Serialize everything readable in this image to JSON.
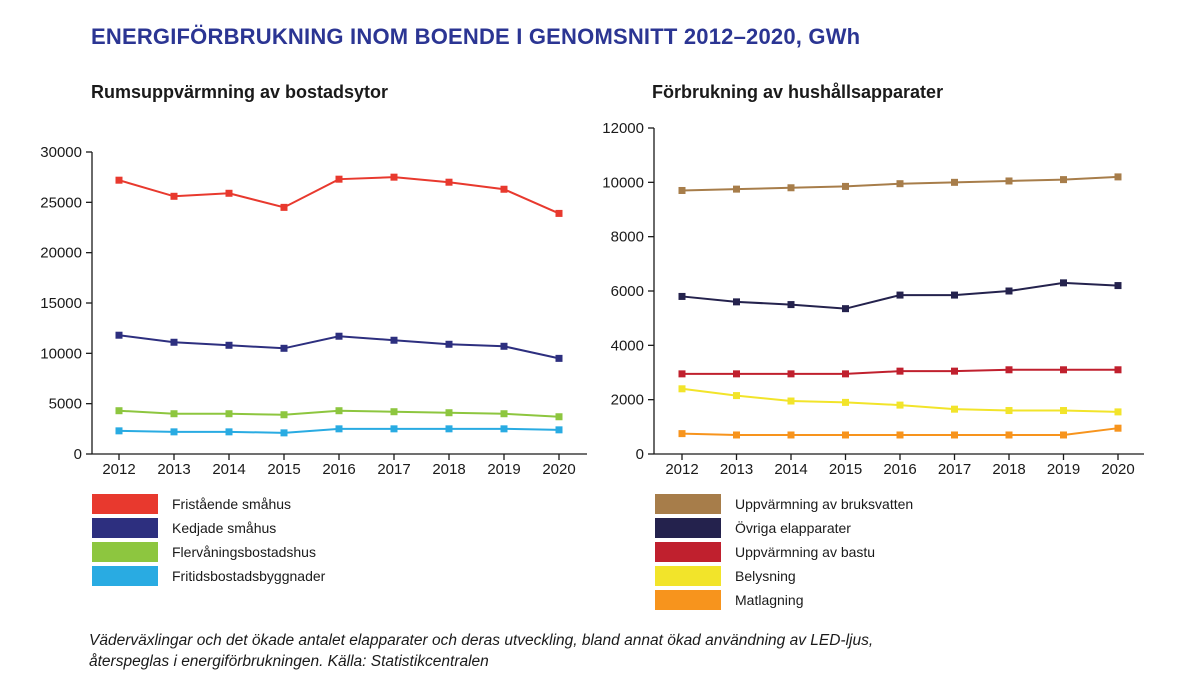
{
  "title": "ENERGIFÖRBRUKNING INOM BOENDE I GENOMSNITT 2012–2020, GWh",
  "footnote": {
    "line1": "Väderväxlingar och det ökade antalet elapparater och deras utveckling, bland annat ökad användning av LED-ljus,",
    "line2": "återspeglas i energiförbrukningen. Källa: Statistikcentralen"
  },
  "chart_data": [
    {
      "type": "line",
      "title": "Rumsuppvärmning av bostadsytor",
      "categories": [
        "2012",
        "2013",
        "2014",
        "2015",
        "2016",
        "2017",
        "2018",
        "2019",
        "2020"
      ],
      "ylim": [
        0,
        30000
      ],
      "yticks": [
        "0",
        "5000",
        "10000",
        "15000",
        "20000",
        "25000",
        "30000"
      ],
      "grid": false,
      "legend_position": "bottom",
      "series": [
        {
          "name": "Fristående småhus",
          "color": "#e8392e",
          "values": [
            27200,
            25600,
            25900,
            24500,
            27300,
            27500,
            27000,
            26300,
            23900
          ]
        },
        {
          "name": "Kedjade småhus",
          "color": "#2d2f7f",
          "values": [
            11800,
            11100,
            10800,
            10500,
            11700,
            11300,
            10900,
            10700,
            9500
          ]
        },
        {
          "name": "Flervåningsbostadshus",
          "color": "#8dc63f",
          "values": [
            4300,
            4000,
            4000,
            3900,
            4300,
            4200,
            4100,
            4000,
            3700
          ]
        },
        {
          "name": "Fritidsbostadsbyggnader",
          "color": "#29abe2",
          "values": [
            2300,
            2200,
            2200,
            2100,
            2500,
            2500,
            2500,
            2500,
            2400
          ]
        }
      ]
    },
    {
      "type": "line",
      "title": "Förbrukning av hushållsapparater",
      "categories": [
        "2012",
        "2013",
        "2014",
        "2015",
        "2016",
        "2017",
        "2018",
        "2019",
        "2020"
      ],
      "ylim": [
        0,
        12000
      ],
      "yticks": [
        "0",
        "2000",
        "4000",
        "6000",
        "8000",
        "10000",
        "12000"
      ],
      "grid": false,
      "legend_position": "bottom",
      "series": [
        {
          "name": "Uppvärmning av bruksvatten",
          "color": "#a77d4a",
          "values": [
            9700,
            9750,
            9800,
            9850,
            9950,
            10000,
            10050,
            10100,
            10200
          ]
        },
        {
          "name": "Övriga elapparater",
          "color": "#24224d",
          "values": [
            5800,
            5600,
            5500,
            5350,
            5850,
            5850,
            6000,
            6300,
            6200
          ]
        },
        {
          "name": "Uppvärmning av bastu",
          "color": "#c0202e",
          "values": [
            2950,
            2950,
            2950,
            2950,
            3050,
            3050,
            3100,
            3100,
            3100
          ]
        },
        {
          "name": "Belysning",
          "color": "#f2e42a",
          "values": [
            2400,
            2150,
            1950,
            1900,
            1800,
            1650,
            1600,
            1600,
            1550
          ]
        },
        {
          "name": "Matlagning",
          "color": "#f7941d",
          "values": [
            750,
            700,
            700,
            700,
            700,
            700,
            700,
            700,
            950
          ]
        }
      ]
    }
  ]
}
